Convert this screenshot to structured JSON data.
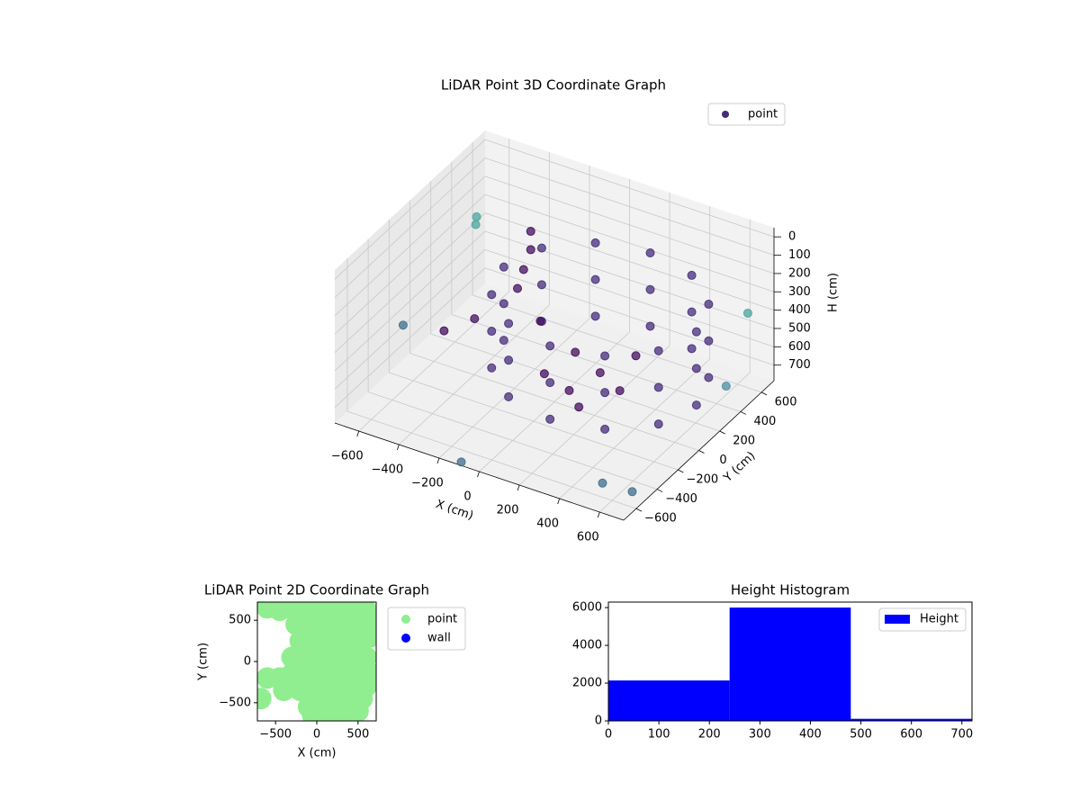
{
  "chart_data": [
    {
      "type": "scatter3d",
      "title": "LiDAR Point 3D Coordinate Graph",
      "xlabel": "X (cm)",
      "ylabel": "Y (cm)",
      "zlabel": "H (cm)",
      "xlim": [
        -720,
        720
      ],
      "ylim": [
        -720,
        720
      ],
      "zlim": [
        785,
        -50
      ],
      "xticks": [
        {
          "value": -600,
          "label": "−600"
        },
        {
          "value": -400,
          "label": "−400"
        },
        {
          "value": -200,
          "label": "−200"
        },
        0,
        200,
        400,
        600
      ],
      "yticks": [
        {
          "value": -600,
          "label": "−600"
        },
        {
          "value": -400,
          "label": "−400"
        },
        {
          "value": -200,
          "label": "−200"
        },
        0,
        200,
        400,
        600
      ],
      "zticks": [
        0,
        100,
        200,
        300,
        400,
        500,
        600,
        700
      ],
      "grid": true,
      "legend": "upper right",
      "series": [
        {
          "name": "point",
          "color": "#472c7a",
          "x": [
            630,
            630,
            630,
            566,
            566,
            566,
            390,
            390,
            390,
            150,
            150,
            150,
            -90,
            -90,
            -90,
            -266,
            -266,
            -266,
            -330,
            -330,
            -330,
            -266,
            -266,
            -266,
            -90,
            -90,
            -90,
            150,
            150,
            150,
            390,
            390,
            390,
            566,
            566,
            566,
            150,
            0,
            300,
            100,
            250,
            -50,
            200,
            -300,
            -300,
            -320,
            -340,
            -200,
            -450,
            -550,
            -700,
            -650,
            700,
            600,
            -100,
            500,
            700,
            -600
          ],
          "y": [
            150,
            150,
            150,
            390,
            390,
            390,
            566,
            566,
            566,
            630,
            630,
            630,
            566,
            566,
            566,
            390,
            390,
            390,
            150,
            150,
            150,
            -90,
            -90,
            -90,
            -266,
            -266,
            -266,
            -330,
            -330,
            -330,
            -266,
            -266,
            -266,
            -90,
            -90,
            -90,
            150,
            200,
            50,
            -50,
            300,
            0,
            -150,
            350,
            350,
            320,
            300,
            250,
            100,
            0,
            600,
            -200,
            -600,
            700,
            -700,
            -500,
            300,
            400
          ],
          "z": [
            250,
            450,
            650,
            250,
            450,
            650,
            250,
            450,
            650,
            250,
            450,
            650,
            250,
            450,
            650,
            250,
            450,
            650,
            250,
            450,
            650,
            250,
            450,
            650,
            250,
            450,
            650,
            250,
            450,
            650,
            250,
            450,
            650,
            250,
            450,
            650,
            650,
            620,
            640,
            660,
            600,
            650,
            660,
            150,
            250,
            350,
            450,
            550,
            550,
            600,
            350,
            500,
            700,
            450,
            780,
            780,
            600,
            250
          ],
          "colors": [
            "#472d7b",
            "#472d7b",
            "#472d7b",
            "#472d7b",
            "#472d7b",
            "#472d7b",
            "#472d7b",
            "#472d7b",
            "#472d7b",
            "#472d7b",
            "#472d7b",
            "#472d7b",
            "#472d7b",
            "#472d7b",
            "#472d7b",
            "#472d7b",
            "#472d7b",
            "#472d7b",
            "#472d7b",
            "#472d7b",
            "#472d7b",
            "#472d7b",
            "#472d7b",
            "#472d7b",
            "#472d7b",
            "#472d7b",
            "#472d7b",
            "#472d7b",
            "#472d7b",
            "#472d7b",
            "#472d7b",
            "#472d7b",
            "#472d7b",
            "#472d7b",
            "#472d7b",
            "#472d7b",
            "#440f5e",
            "#440f5e",
            "#440f5e",
            "#440f5e",
            "#440f5e",
            "#440f5e",
            "#440f5e",
            "#440f5e",
            "#440f5e",
            "#440f5e",
            "#440f5e",
            "#440f5e",
            "#440f5e",
            "#440f5e",
            "#4ba6a0",
            "#3f6e8e",
            "#3f6e8e",
            "#4ba6a0",
            "#3f6e8e",
            "#3f6e8e",
            "#4a8fa0",
            "#4ba6a0"
          ]
        }
      ]
    },
    {
      "type": "scatter",
      "title": "LiDAR Point 2D Coordinate Graph",
      "xlabel": "X (cm)",
      "ylabel": "Y (cm)",
      "xlim": [
        -720,
        720
      ],
      "ylim": [
        -720,
        720
      ],
      "xticks": [
        {
          "value": -500,
          "label": "−500"
        },
        0,
        500
      ],
      "yticks": [
        {
          "value": -500,
          "label": "−500"
        },
        0,
        500
      ],
      "legend": "outside right",
      "series": [
        {
          "name": "point",
          "color": "#90ee90",
          "x": [
            -600,
            -450,
            -300,
            -150,
            0,
            150,
            300,
            450,
            600,
            650,
            -250,
            -100,
            50,
            200,
            350,
            500,
            650,
            -200,
            -50,
            100,
            250,
            400,
            550,
            -300,
            -150,
            0,
            150,
            300,
            450,
            600,
            650,
            -600,
            -450,
            -300,
            -150,
            0,
            150,
            300,
            450,
            600,
            -400,
            -200,
            -50,
            100,
            250,
            400,
            550,
            -680,
            -100,
            50,
            200,
            350,
            500,
            -50,
            150,
            300
          ],
          "y": [
            650,
            620,
            650,
            650,
            650,
            650,
            650,
            650,
            620,
            500,
            450,
            450,
            450,
            450,
            450,
            450,
            300,
            250,
            250,
            250,
            250,
            250,
            250,
            50,
            50,
            50,
            50,
            50,
            50,
            50,
            -150,
            -200,
            -200,
            -150,
            -150,
            -150,
            -150,
            -150,
            -150,
            -300,
            -350,
            -350,
            -350,
            -350,
            -350,
            -350,
            -450,
            -450,
            -550,
            -550,
            -550,
            -550,
            -600,
            -650,
            -680,
            -680
          ]
        },
        {
          "name": "wall",
          "color": "#0000ff",
          "x": [],
          "y": []
        }
      ]
    },
    {
      "type": "histogram",
      "title": "Height Histogram",
      "bins": [
        0,
        240,
        480,
        720
      ],
      "counts": [
        2140,
        6000,
        110
      ],
      "name": "Height",
      "color": "#0000ff",
      "xlim": [
        0,
        720
      ],
      "ylim": [
        0,
        6290
      ],
      "xticks": [
        0,
        100,
        200,
        300,
        400,
        500,
        600,
        700
      ],
      "yticks": [
        0,
        2000,
        4000,
        6000
      ],
      "legend": "upper right"
    }
  ]
}
